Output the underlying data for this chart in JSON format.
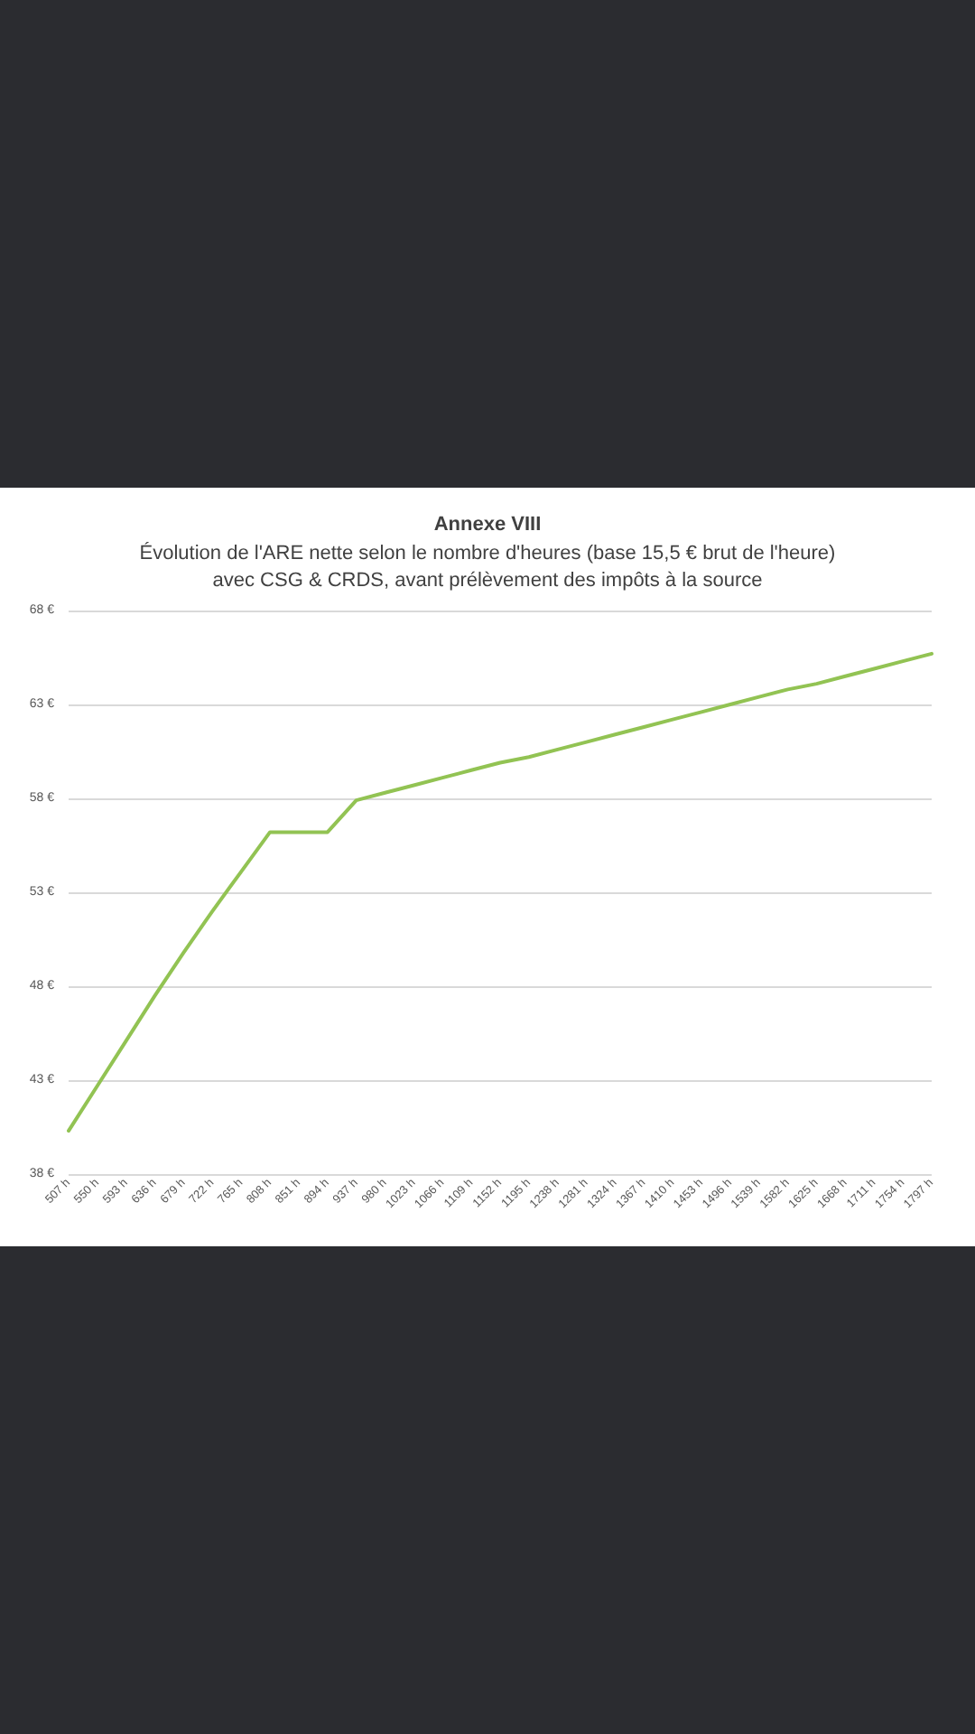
{
  "chart_data": {
    "type": "line",
    "title": "Annexe VIII",
    "subtitle": "Évolution de l'ARE nette selon le nombre d'heures (base 15,5 € brut de l'heure)\navec CSG & CRDS, avant prélèvement des impôts à la source",
    "categories": [
      "507 h",
      "550 h",
      "593 h",
      "636 h",
      "679 h",
      "722 h",
      "765 h",
      "808 h",
      "851 h",
      "894 h",
      "937 h",
      "980 h",
      "1023 h",
      "1066 h",
      "1109 h",
      "1152 h",
      "1195 h",
      "1238 h",
      "1281 h",
      "1324 h",
      "1367 h",
      "1410 h",
      "1453 h",
      "1496 h",
      "1539 h",
      "1582 h",
      "1625 h",
      "1668 h",
      "1711 h",
      "1754 h",
      "1797 h"
    ],
    "series": [
      {
        "color": "#92c353",
        "values": [
          40.3,
          42.7,
          45.1,
          47.5,
          49.8,
          52.0,
          54.1,
          56.2,
          56.2,
          56.2,
          57.9,
          58.3,
          58.7,
          59.1,
          59.5,
          59.9,
          60.2,
          60.6,
          61.0,
          61.4,
          61.8,
          62.2,
          62.6,
          63.0,
          63.4,
          63.8,
          64.1,
          64.5,
          64.9,
          65.3,
          65.7
        ]
      }
    ],
    "ylim": [
      38,
      68
    ],
    "yticks": [
      {
        "value": 38,
        "label": "38 €"
      },
      {
        "value": 43,
        "label": "43 €"
      },
      {
        "value": 48,
        "label": "48 €"
      },
      {
        "value": 53,
        "label": "53 €"
      },
      {
        "value": 58,
        "label": "58 €"
      },
      {
        "value": 63,
        "label": "63 €"
      },
      {
        "value": 68,
        "label": "68 €"
      }
    ],
    "grid": "y",
    "marker": "none",
    "line_style": "solid"
  }
}
